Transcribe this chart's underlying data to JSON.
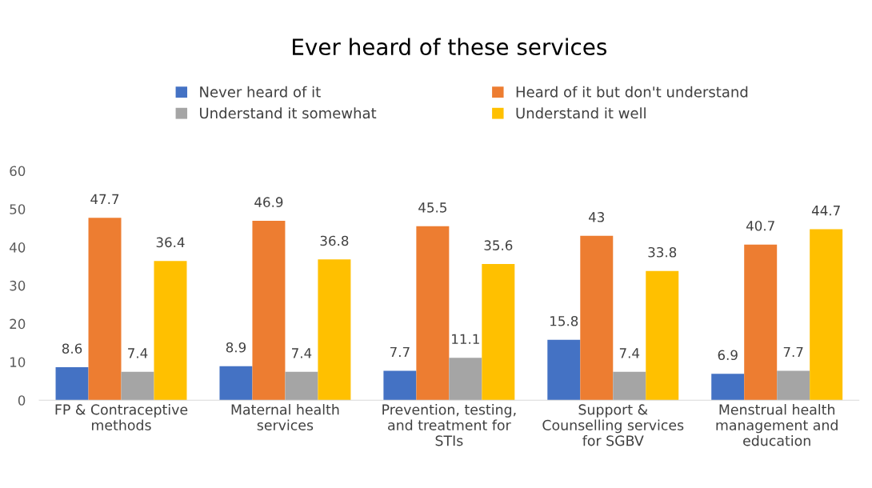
{
  "chart_data": {
    "type": "bar",
    "title": "Ever heard of these services",
    "categories": [
      "FP & Contraceptive\nmethods",
      "Maternal health\nservices",
      "Prevention, testing,\nand treatment for\nSTIs",
      "Support &\nCounselling services\nfor SGBV",
      "Menstrual health\nmanagement and\neducation"
    ],
    "series": [
      {
        "name": "Never heard of it",
        "color": "#4472c4",
        "values": [
          8.6,
          8.9,
          7.7,
          15.8,
          6.9
        ]
      },
      {
        "name": "Heard of it but don't understand",
        "color": "#ed7d31",
        "values": [
          47.7,
          46.9,
          45.5,
          43,
          40.7
        ]
      },
      {
        "name": "Understand it somewhat",
        "color": "#a5a5a5",
        "values": [
          7.4,
          7.4,
          11.1,
          7.4,
          7.7
        ]
      },
      {
        "name": "Understand it well",
        "color": "#ffc000",
        "values": [
          36.4,
          36.8,
          35.6,
          33.8,
          44.7
        ]
      }
    ],
    "ylim": [
      0,
      60
    ],
    "yticks": [
      0,
      10,
      20,
      30,
      40,
      50,
      60
    ],
    "data_labels": true,
    "grid": false,
    "legend": "top"
  }
}
